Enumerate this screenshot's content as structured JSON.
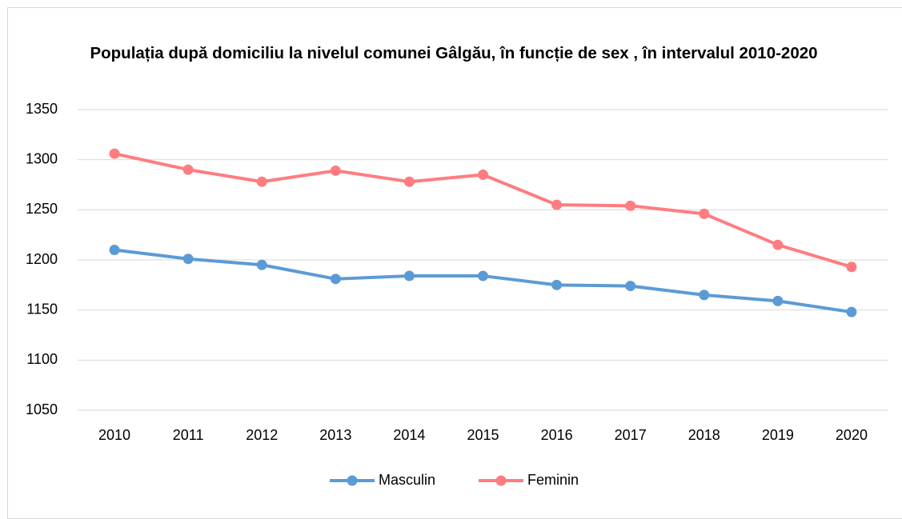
{
  "chart_data": {
    "type": "line",
    "title": "Populația după domiciliu la nivelul comunei Gâlgău, în funcție de sex , în intervalul 2010-2020",
    "categories": [
      "2010",
      "2011",
      "2012",
      "2013",
      "2014",
      "2015",
      "2016",
      "2017",
      "2018",
      "2019",
      "2020"
    ],
    "series": [
      {
        "name": "Masculin",
        "color": "#5b9bd5",
        "values": [
          1210,
          1201,
          1195,
          1181,
          1184,
          1184,
          1175,
          1174,
          1165,
          1159,
          1148
        ]
      },
      {
        "name": "Feminin",
        "color": "#ff7c80",
        "values": [
          1306,
          1290,
          1278,
          1289,
          1278,
          1285,
          1255,
          1254,
          1246,
          1215,
          1193
        ]
      }
    ],
    "ylim": [
      1050,
      1350
    ],
    "yticks": [
      1050,
      1100,
      1150,
      1200,
      1250,
      1300,
      1350
    ],
    "grid": true,
    "legend": "bottom"
  }
}
